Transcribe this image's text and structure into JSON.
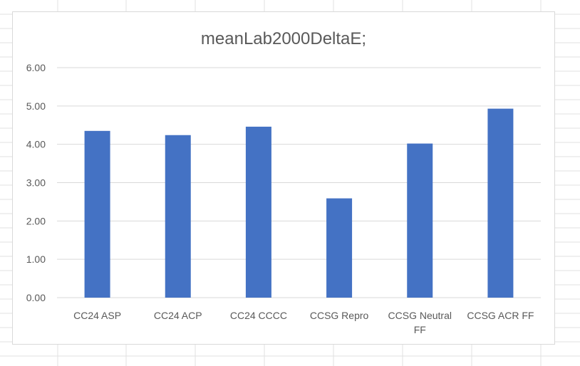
{
  "colors": {
    "bar": "#4472c4",
    "gridline": "#d9d9d9",
    "axis_text": "#595959",
    "sheet_grid": "#e1e1e1"
  },
  "chart_data": {
    "type": "bar",
    "title": "meanLab2000DeltaE;",
    "xlabel": "",
    "ylabel": "",
    "categories": [
      "CC24 ASP",
      "CC24 ACP",
      "CC24 CCCC",
      "CCSG Repro",
      "CCSG Neutral FF",
      "CCSG ACR FF"
    ],
    "series": [
      {
        "values": [
          4.35,
          4.24,
          4.46,
          2.59,
          4.02,
          4.93
        ]
      }
    ],
    "ylim": [
      0,
      6
    ],
    "yticks": [
      "0.00",
      "1.00",
      "2.00",
      "3.00",
      "4.00",
      "5.00",
      "6.00"
    ],
    "grid": true,
    "legend": "none"
  }
}
